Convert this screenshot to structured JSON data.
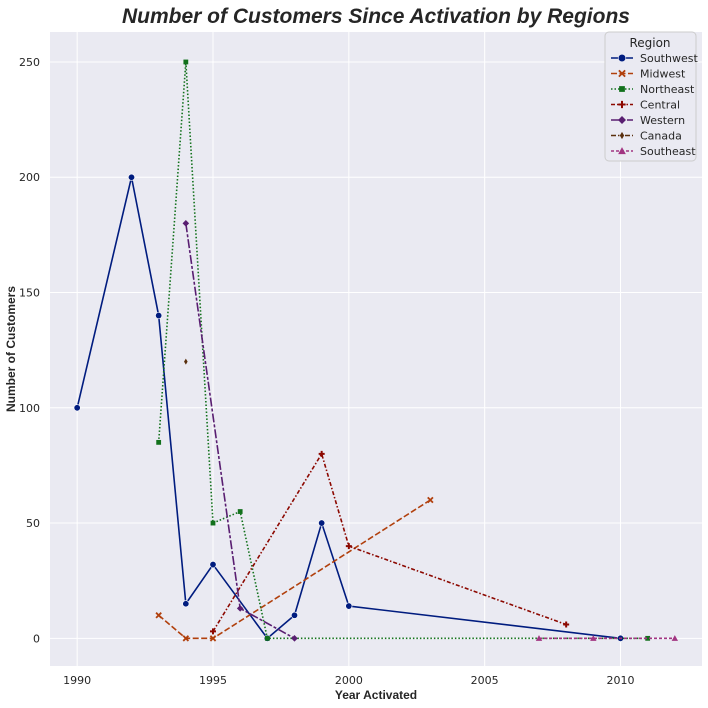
{
  "chart_data": {
    "type": "line",
    "title": "Number of Customers Since Activation by Regions",
    "xlabel": "Year Activated",
    "ylabel": "Number of Customers",
    "xlim": [
      1989,
      2013
    ],
    "ylim": [
      -12,
      263
    ],
    "xticks": [
      1990,
      1995,
      2000,
      2005,
      2010
    ],
    "yticks": [
      0,
      50,
      100,
      150,
      200,
      250
    ],
    "grid": true,
    "legend": {
      "title": "Region",
      "placement": "top-right"
    },
    "series": [
      {
        "name": "Southwest",
        "color": "#001c7f",
        "dash": "solid",
        "marker": "circle",
        "x": [
          1990,
          1992,
          1993,
          1994,
          1995,
          1997,
          1998,
          1999,
          2000,
          2010
        ],
        "y": [
          100,
          200,
          140,
          15,
          32,
          0,
          10,
          50,
          14,
          0
        ]
      },
      {
        "name": "Midwest",
        "color": "#b1400d",
        "dash": "dashed",
        "marker": "x",
        "x": [
          1993,
          1994,
          1995,
          2003
        ],
        "y": [
          10,
          0,
          0,
          60
        ]
      },
      {
        "name": "Northeast",
        "color": "#12711c",
        "dash": "dotted",
        "marker": "square",
        "x": [
          1993,
          1994,
          1995,
          1996,
          1997,
          2011
        ],
        "y": [
          85,
          250,
          50,
          55,
          0,
          0
        ]
      },
      {
        "name": "Central",
        "color": "#8c0800",
        "dash": "dashdot",
        "marker": "plus",
        "x": [
          1995,
          1999,
          2000,
          2008
        ],
        "y": [
          3,
          80,
          40,
          6
        ]
      },
      {
        "name": "Western",
        "color": "#591e71",
        "dash": "longdash",
        "marker": "diamond",
        "x": [
          1994,
          1996,
          1998
        ],
        "y": [
          180,
          13,
          0
        ]
      },
      {
        "name": "Canada",
        "color": "#592f0d",
        "dash": "dashdotdot",
        "marker": "thin-diamond",
        "x": [
          1994
        ],
        "y": [
          120
        ]
      },
      {
        "name": "Southeast",
        "color": "#a23582",
        "dash": "densedash",
        "marker": "triangle",
        "x": [
          2007,
          2009,
          2012
        ],
        "y": [
          0,
          0,
          0
        ]
      }
    ]
  }
}
